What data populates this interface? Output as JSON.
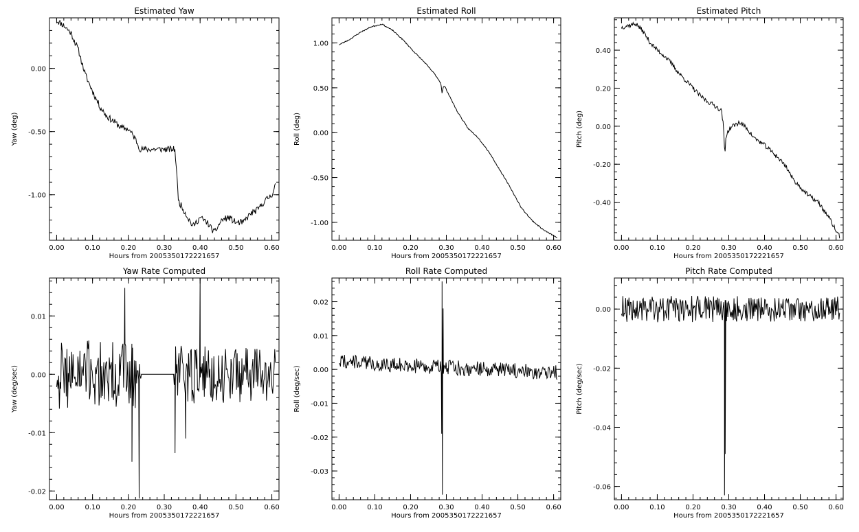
{
  "chart_data": [
    {
      "id": "yaw",
      "type": "line",
      "title": "Estimated Yaw",
      "xlabel": "Hours from 2005350172221657",
      "ylabel": "Yaw (deg)",
      "xlim": [
        -0.02,
        0.62
      ],
      "ylim": [
        -1.36,
        0.4
      ],
      "xticks": [
        0.0,
        0.1,
        0.2,
        0.3,
        0.4,
        0.5,
        0.6
      ],
      "yticks": [
        0.0,
        -0.5,
        -1.0
      ],
      "tick_labels_x": [
        "0.00",
        "0.10",
        "0.20",
        "0.30",
        "0.40",
        "0.50",
        "0.60"
      ],
      "tick_labels_y": [
        "0.00",
        "-0.50",
        "-1.00"
      ],
      "series": [
        {
          "noise": 0.025,
          "seed": 11,
          "x": [
            0.0,
            0.02,
            0.04,
            0.06,
            0.08,
            0.1,
            0.12,
            0.14,
            0.16,
            0.18,
            0.2,
            0.22,
            0.233,
            0.33,
            0.34,
            0.36,
            0.38,
            0.4,
            0.42,
            0.44,
            0.46,
            0.48,
            0.5,
            0.52,
            0.54,
            0.56,
            0.58,
            0.6,
            0.61
          ],
          "y": [
            0.38,
            0.34,
            0.28,
            0.15,
            -0.05,
            -0.18,
            -0.3,
            -0.38,
            -0.42,
            -0.47,
            -0.48,
            -0.56,
            -0.64,
            -0.64,
            -1.05,
            -1.15,
            -1.25,
            -1.18,
            -1.22,
            -1.3,
            -1.2,
            -1.18,
            -1.22,
            -1.22,
            -1.15,
            -1.12,
            -1.05,
            -1.0,
            -0.92
          ]
        }
      ]
    },
    {
      "id": "roll",
      "type": "line",
      "title": "Estimated Roll",
      "xlabel": "Hours from 2005350172221657",
      "ylabel": "Roll (deg)",
      "xlim": [
        -0.02,
        0.62
      ],
      "ylim": [
        -1.2,
        1.28
      ],
      "xticks": [
        0.0,
        0.1,
        0.2,
        0.3,
        0.4,
        0.5,
        0.6
      ],
      "yticks": [
        1.0,
        0.5,
        0.0,
        -0.5,
        -1.0
      ],
      "tick_labels_x": [
        "0.00",
        "0.10",
        "0.20",
        "0.30",
        "0.40",
        "0.50",
        "0.60"
      ],
      "tick_labels_y": [
        "1.00",
        "0.50",
        "0.00",
        "-0.50",
        "-1.00"
      ],
      "series": [
        {
          "noise": 0.006,
          "seed": 23,
          "x": [
            0.0,
            0.03,
            0.06,
            0.09,
            0.12,
            0.15,
            0.18,
            0.21,
            0.24,
            0.27,
            0.285,
            0.289,
            0.29,
            0.295,
            0.3,
            0.33,
            0.36,
            0.39,
            0.42,
            0.45,
            0.48,
            0.51,
            0.54,
            0.57,
            0.6,
            0.61
          ],
          "y": [
            0.98,
            1.04,
            1.12,
            1.18,
            1.21,
            1.14,
            1.03,
            0.9,
            0.78,
            0.64,
            0.55,
            0.4,
            0.5,
            0.52,
            0.48,
            0.24,
            0.05,
            -0.06,
            -0.22,
            -0.42,
            -0.62,
            -0.84,
            -0.98,
            -1.08,
            -1.15,
            -1.17
          ]
        }
      ]
    },
    {
      "id": "pitch",
      "type": "line",
      "title": "Estimated Pitch",
      "xlabel": "Hours from 2005350172221657",
      "ylabel": "Pitch (deg)",
      "xlim": [
        -0.02,
        0.62
      ],
      "ylim": [
        -0.6,
        0.57
      ],
      "xticks": [
        0.0,
        0.1,
        0.2,
        0.3,
        0.4,
        0.5,
        0.6
      ],
      "yticks": [
        0.4,
        0.2,
        0.0,
        -0.2,
        -0.4
      ],
      "tick_labels_x": [
        "0.00",
        "0.10",
        "0.20",
        "0.30",
        "0.40",
        "0.50",
        "0.60"
      ],
      "tick_labels_y": [
        "0.40",
        "0.20",
        "0.00",
        "-0.20",
        "-0.40"
      ],
      "series": [
        {
          "noise": 0.012,
          "seed": 37,
          "x": [
            0.0,
            0.02,
            0.04,
            0.06,
            0.08,
            0.1,
            0.12,
            0.14,
            0.16,
            0.18,
            0.2,
            0.22,
            0.24,
            0.26,
            0.28,
            0.285,
            0.289,
            0.292,
            0.3,
            0.31,
            0.33,
            0.35,
            0.37,
            0.4,
            0.43,
            0.46,
            0.48,
            0.5,
            0.52,
            0.55,
            0.58,
            0.6,
            0.61
          ],
          "y": [
            0.52,
            0.53,
            0.54,
            0.5,
            0.44,
            0.4,
            0.37,
            0.33,
            0.28,
            0.24,
            0.2,
            0.16,
            0.13,
            0.11,
            0.08,
            0.0,
            -0.16,
            -0.05,
            -0.02,
            0.0,
            0.02,
            -0.01,
            -0.06,
            -0.1,
            -0.15,
            -0.21,
            -0.28,
            -0.32,
            -0.36,
            -0.4,
            -0.48,
            -0.55,
            -0.58
          ]
        }
      ]
    },
    {
      "id": "yaw-rate",
      "type": "line",
      "title": "Yaw Rate Computed",
      "xlabel": "Hours from 2005350172221657",
      "ylabel": "Yaw (deg/sec)",
      "xlim": [
        -0.02,
        0.62
      ],
      "ylim": [
        -0.0215,
        0.0165
      ],
      "xticks": [
        0.0,
        0.1,
        0.2,
        0.3,
        0.4,
        0.5,
        0.6
      ],
      "yticks": [
        0.01,
        0.0,
        -0.01,
        -0.02
      ],
      "tick_labels_x": [
        "0.00",
        "0.10",
        "0.20",
        "0.30",
        "0.40",
        "0.50",
        "0.60"
      ],
      "tick_labels_y": [
        "0.01",
        "0.00",
        "-0.01",
        "-0.02"
      ],
      "series": [
        {
          "noise_segments": [
            [
              0.0,
              0.236,
              0.006,
              211
            ],
            [
              0.326,
              0.61,
              0.005,
              212
            ]
          ],
          "x": [
            0.0,
            0.236,
            0.24,
            0.326,
            0.61
          ],
          "y": [
            0.0,
            0.0,
            0.0,
            0.0,
            0.0
          ],
          "spikes": [
            [
              0.19,
              0.0148
            ],
            [
              0.21,
              -0.015
            ],
            [
              0.23,
              -0.0213
            ],
            [
              0.33,
              -0.0135
            ],
            [
              0.4,
              0.0165
            ],
            [
              0.36,
              -0.011
            ]
          ]
        }
      ]
    },
    {
      "id": "roll-rate",
      "type": "line",
      "title": "Roll Rate Computed",
      "xlabel": "Hours from 2005350172221657",
      "ylabel": "Roll (deg/sec)",
      "xlim": [
        -0.02,
        0.62
      ],
      "ylim": [
        -0.0385,
        0.027
      ],
      "xticks": [
        0.0,
        0.1,
        0.2,
        0.3,
        0.4,
        0.5,
        0.6
      ],
      "yticks": [
        0.02,
        0.01,
        0.0,
        -0.01,
        -0.02,
        -0.03
      ],
      "tick_labels_x": [
        "0.00",
        "0.10",
        "0.20",
        "0.30",
        "0.40",
        "0.50",
        "0.60"
      ],
      "tick_labels_y": [
        "0.02",
        "0.01",
        "0.00",
        "-0.01",
        "-0.02",
        "-0.03"
      ],
      "series": [
        {
          "noise_segments": [
            [
              0.0,
              0.61,
              0.0022,
              221
            ]
          ],
          "x": [
            0.0,
            0.12,
            0.61
          ],
          "y": [
            0.0025,
            0.0015,
            -0.001
          ],
          "spikes": [
            [
              0.288,
              0.026
            ],
            [
              0.289,
              -0.037
            ],
            [
              0.291,
              0.018
            ],
            [
              0.287,
              -0.019
            ]
          ]
        }
      ]
    },
    {
      "id": "pitch-rate",
      "type": "line",
      "title": "Pitch Rate Computed",
      "xlabel": "Hours from 2005350172221657",
      "ylabel": "Pitch (deg/sec)",
      "xlim": [
        -0.02,
        0.62
      ],
      "ylim": [
        -0.0645,
        0.0105
      ],
      "xticks": [
        0.0,
        0.1,
        0.2,
        0.3,
        0.4,
        0.5,
        0.6
      ],
      "yticks": [
        0.0,
        -0.02,
        -0.04,
        -0.06
      ],
      "tick_labels_x": [
        "0.00",
        "0.10",
        "0.20",
        "0.30",
        "0.40",
        "0.50",
        "0.60"
      ],
      "tick_labels_y": [
        "0.00",
        "-0.02",
        "-0.04",
        "-0.06"
      ],
      "series": [
        {
          "noise_segments": [
            [
              0.0,
              0.61,
              0.0045,
              231
            ]
          ],
          "x": [
            0.0,
            0.61
          ],
          "y": [
            0.0,
            0.0
          ],
          "spikes": [
            [
              0.288,
              -0.063
            ],
            [
              0.29,
              -0.049
            ]
          ]
        }
      ]
    }
  ]
}
